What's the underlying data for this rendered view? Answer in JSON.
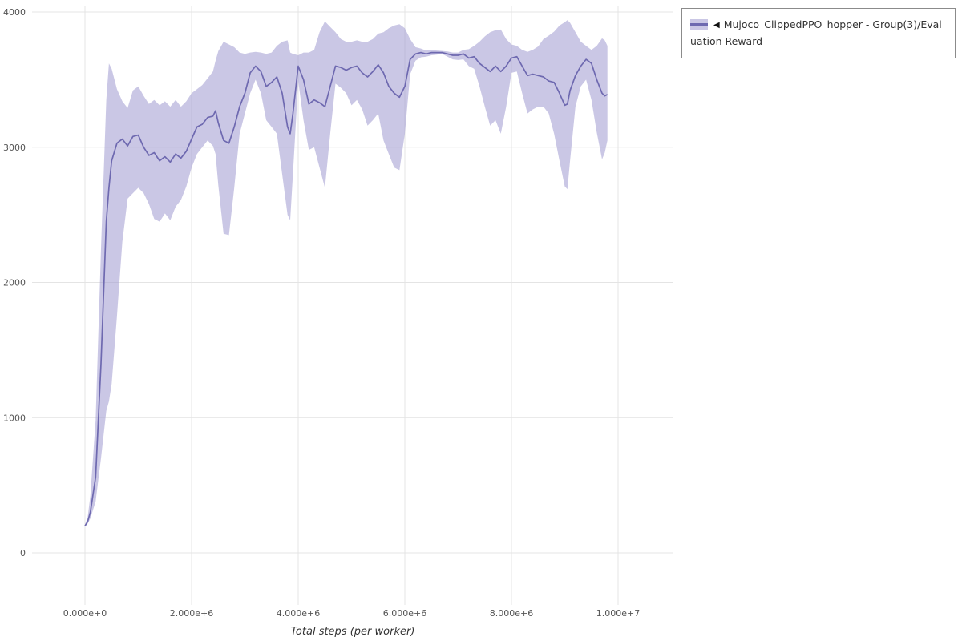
{
  "legend": {
    "collapse_icon": "◀",
    "label": "Mujoco_ClippedPPO_hopper - Group(3)/Evaluation Reward"
  },
  "colors": {
    "line": "#6e69b0",
    "band_fill": "#9f99d0",
    "band_opacity": 0.55,
    "grid": "#e4e4e4",
    "tick_text": "#555555",
    "background": "#ffffff"
  },
  "chart_data": {
    "type": "line",
    "title": "",
    "xlabel": "Total steps (per worker)",
    "ylabel": "",
    "xlim": [
      -1000000,
      11000000
    ],
    "ylim": [
      0,
      4000
    ],
    "grid": true,
    "legend_position": "top-right",
    "x_multiplier": 1000000,
    "xticks": [
      {
        "value": 0,
        "label": "0.000e+0"
      },
      {
        "value": 2000000,
        "label": "2.000e+6"
      },
      {
        "value": 4000000,
        "label": "4.000e+6"
      },
      {
        "value": 6000000,
        "label": "6.000e+6"
      },
      {
        "value": 8000000,
        "label": "8.000e+6"
      },
      {
        "value": 10000000,
        "label": "1.000e+7"
      }
    ],
    "yticks": [
      {
        "value": 0,
        "label": "0"
      },
      {
        "value": 1000,
        "label": "1000"
      },
      {
        "value": 2000,
        "label": "2000"
      },
      {
        "value": 3000,
        "label": "3000"
      },
      {
        "value": 4000,
        "label": "4000"
      }
    ],
    "series": [
      {
        "name": "Mujoco_ClippedPPO_hopper - Group(3)/Evaluation Reward",
        "line_color": "#6e69b0",
        "band_color": "#9f99d0",
        "band_opacity": 0.55,
        "x": [
          0,
          0.05,
          0.1,
          0.2,
          0.3,
          0.4,
          0.45,
          0.5,
          0.6,
          0.7,
          0.8,
          0.9,
          1.0,
          1.1,
          1.2,
          1.3,
          1.4,
          1.5,
          1.6,
          1.7,
          1.8,
          1.9,
          2.0,
          2.1,
          2.2,
          2.3,
          2.4,
          2.45,
          2.5,
          2.6,
          2.7,
          2.8,
          2.9,
          3.0,
          3.1,
          3.2,
          3.3,
          3.4,
          3.5,
          3.6,
          3.7,
          3.8,
          3.85,
          3.9,
          4.0,
          4.1,
          4.2,
          4.3,
          4.4,
          4.5,
          4.6,
          4.7,
          4.8,
          4.9,
          5.0,
          5.1,
          5.2,
          5.3,
          5.4,
          5.5,
          5.6,
          5.7,
          5.8,
          5.9,
          6.0,
          6.1,
          6.2,
          6.3,
          6.4,
          6.5,
          6.6,
          6.7,
          6.8,
          6.9,
          7.0,
          7.1,
          7.2,
          7.3,
          7.4,
          7.5,
          7.6,
          7.7,
          7.8,
          7.9,
          8.0,
          8.1,
          8.2,
          8.3,
          8.4,
          8.5,
          8.6,
          8.7,
          8.8,
          8.9,
          9.0,
          9.05,
          9.1,
          9.2,
          9.3,
          9.4,
          9.5,
          9.6,
          9.7,
          9.75,
          9.8
        ],
        "mean": [
          200,
          230,
          300,
          560,
          1400,
          2450,
          2700,
          2900,
          3030,
          3060,
          3010,
          3080,
          3090,
          3000,
          2940,
          2960,
          2900,
          2930,
          2890,
          2950,
          2920,
          2970,
          3060,
          3150,
          3170,
          3220,
          3230,
          3270,
          3180,
          3050,
          3030,
          3150,
          3300,
          3400,
          3550,
          3600,
          3560,
          3450,
          3480,
          3520,
          3400,
          3150,
          3100,
          3250,
          3600,
          3500,
          3320,
          3350,
          3330,
          3300,
          3450,
          3600,
          3590,
          3570,
          3590,
          3600,
          3550,
          3520,
          3560,
          3610,
          3550,
          3450,
          3400,
          3370,
          3450,
          3650,
          3690,
          3700,
          3690,
          3700,
          3700,
          3700,
          3690,
          3680,
          3680,
          3690,
          3660,
          3670,
          3620,
          3590,
          3560,
          3600,
          3560,
          3600,
          3660,
          3670,
          3600,
          3530,
          3540,
          3530,
          3520,
          3490,
          3480,
          3400,
          3310,
          3320,
          3420,
          3530,
          3600,
          3650,
          3620,
          3500,
          3400,
          3380,
          3390
        ],
        "lower": [
          195,
          215,
          255,
          380,
          700,
          1050,
          1120,
          1250,
          1750,
          2300,
          2620,
          2660,
          2700,
          2660,
          2580,
          2470,
          2450,
          2510,
          2460,
          2560,
          2610,
          2710,
          2850,
          2950,
          3000,
          3050,
          3010,
          2950,
          2720,
          2360,
          2350,
          2700,
          3100,
          3250,
          3400,
          3500,
          3400,
          3200,
          3150,
          3100,
          2800,
          2500,
          2460,
          2800,
          3490,
          3200,
          2980,
          3000,
          2850,
          2700,
          3100,
          3470,
          3440,
          3400,
          3310,
          3350,
          3280,
          3160,
          3200,
          3250,
          3050,
          2950,
          2850,
          2830,
          3100,
          3540,
          3640,
          3665,
          3670,
          3680,
          3685,
          3690,
          3670,
          3650,
          3645,
          3650,
          3600,
          3580,
          3450,
          3300,
          3160,
          3200,
          3100,
          3300,
          3550,
          3560,
          3400,
          3250,
          3280,
          3300,
          3300,
          3250,
          3100,
          2900,
          2710,
          2690,
          2900,
          3300,
          3450,
          3500,
          3350,
          3110,
          2910,
          2960,
          3050
        ],
        "upper": [
          210,
          260,
          420,
          980,
          2250,
          3350,
          3620,
          3580,
          3430,
          3340,
          3290,
          3420,
          3450,
          3380,
          3320,
          3350,
          3310,
          3340,
          3300,
          3350,
          3300,
          3340,
          3400,
          3430,
          3460,
          3510,
          3560,
          3640,
          3710,
          3780,
          3760,
          3740,
          3700,
          3690,
          3700,
          3705,
          3700,
          3690,
          3700,
          3750,
          3780,
          3790,
          3700,
          3690,
          3680,
          3700,
          3700,
          3720,
          3850,
          3930,
          3890,
          3850,
          3800,
          3780,
          3780,
          3790,
          3780,
          3780,
          3800,
          3840,
          3850,
          3880,
          3900,
          3910,
          3880,
          3800,
          3740,
          3730,
          3715,
          3720,
          3715,
          3712,
          3708,
          3700,
          3700,
          3720,
          3725,
          3750,
          3780,
          3820,
          3850,
          3865,
          3870,
          3800,
          3760,
          3750,
          3720,
          3705,
          3720,
          3745,
          3800,
          3825,
          3855,
          3900,
          3925,
          3940,
          3920,
          3850,
          3780,
          3750,
          3720,
          3750,
          3805,
          3790,
          3750
        ]
      }
    ]
  }
}
